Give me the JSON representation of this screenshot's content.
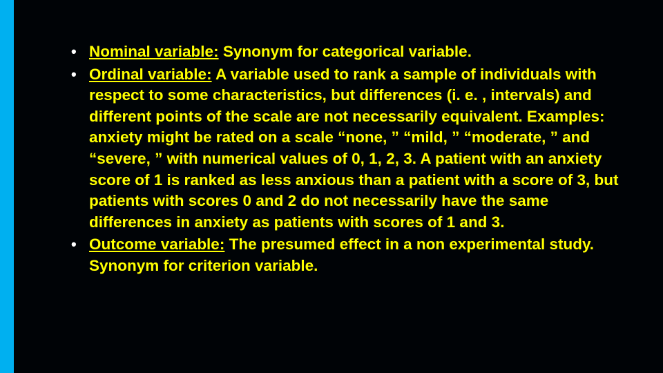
{
  "slide": {
    "background_color": "#000306",
    "accent_bar_color": "#00b0f0",
    "text_color": "#ffff00",
    "bullet_marker_color": "#ffffff",
    "font_size_pt": 17,
    "font_weight": 700,
    "font_family": "Arial",
    "items": [
      {
        "term": "Nominal variable:",
        "definition": " Synonym for categorical variable."
      },
      {
        "term": "Ordinal variable:",
        "definition": " A variable used to rank a sample of individuals with respect to some characteristics, but differences (i. e. , intervals) and different points of the scale are not necessarily equivalent. Examples: anxiety might be rated on a scale “none, ” “mild, ” “moderate, ” and “severe, ” with numerical values of 0, 1, 2, 3. A patient with an anxiety score of 1 is ranked as less anxious than a patient with a score of 3, but patients with scores 0 and 2 do not necessarily have the same differences in anxiety as patients with scores of 1 and 3."
      },
      {
        "term": "Outcome variable:",
        "definition": " The presumed effect in a non experimental study. Synonym for criterion variable."
      }
    ]
  }
}
